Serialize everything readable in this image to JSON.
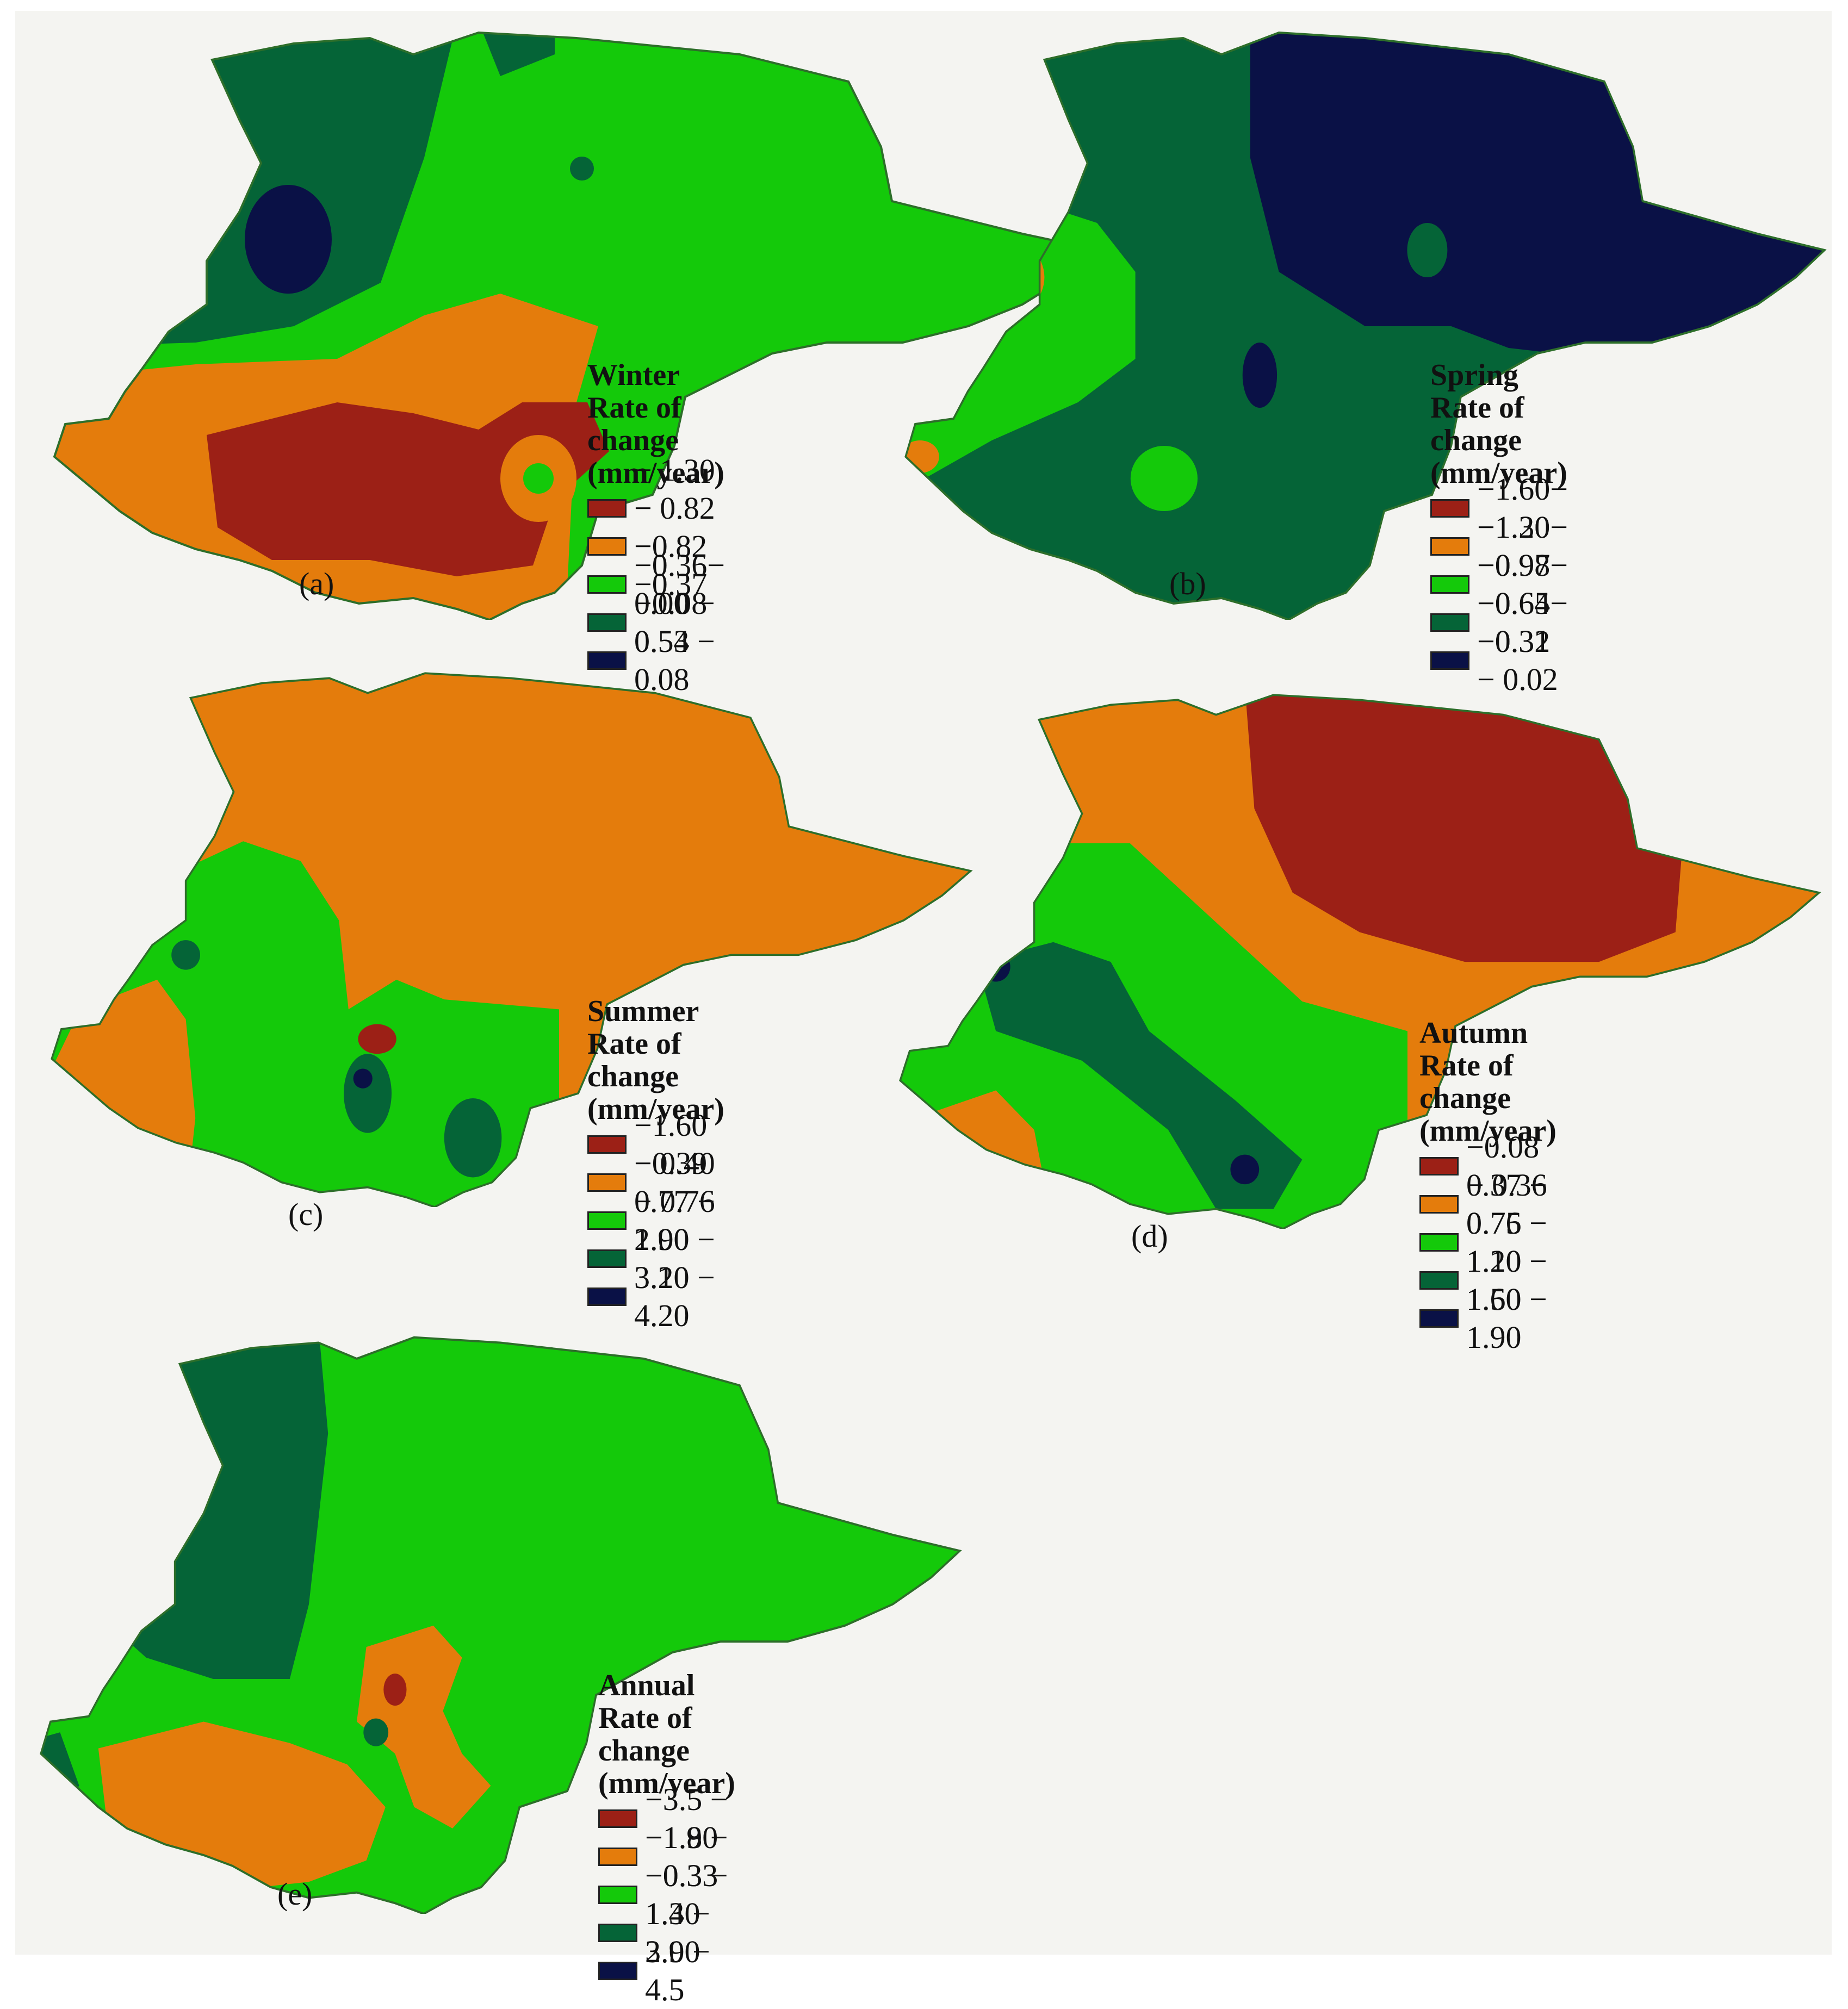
{
  "colors": {
    "class1": "#9c2016",
    "class2": "#e47c0c",
    "class3": "#14c90a",
    "class4": "#056437",
    "class5": "#0a1146",
    "boundary": "#2d6e2a"
  },
  "panels": {
    "a": {
      "caption": "(a)",
      "season": "Winter",
      "heading": "Rate of change",
      "unit": "(mm/year)",
      "classes": [
        "− 1.30 − −0.82",
        "− 0.82 − −0.37",
        "−0.36− −0.08",
        "0.00 − 0.53",
        "0.54 − 0.08"
      ]
    },
    "b": {
      "caption": "(b)",
      "season": "Spring",
      "heading": "Rate of change",
      "unit": "(mm/year)",
      "classes": [
        "−1.60− −1.30",
        "−1.20− −0.98",
        "−0.97− −0.65",
        "−0.64− −0.32",
        "−0.31 −  0.02"
      ]
    },
    "c": {
      "caption": "(c)",
      "season": "Summer",
      "heading": "Rate of change",
      "unit": "(mm/year)",
      "classes": [
        "−1.60 − 0.40",
        "−0.39 − 0.76",
        "0.77 − 1.90",
        "2.00 − 3.10",
        "3.20 − 4.20"
      ]
    },
    "d": {
      "caption": "(d)",
      "season": "Autumn",
      "heading": "Rate of change",
      "unit": "(mm/year)",
      "classes": [
        "−0.08 − 0.36",
        "0.37 − 0.75",
        "0.76 − 1.10",
        "1.20 − 1.50",
        "1.60 − 1.90"
      ]
    },
    "e": {
      "caption": "(e)",
      "season": "Annual",
      "heading": "Rate of change",
      "unit": "(mm/year)",
      "classes": [
        "−3.5 − −1.90",
        "−1.8 − −0.33",
        "−0.3 − 1.30",
        "1.4 − 2.90",
        "3.0 − 4.5"
      ]
    }
  }
}
